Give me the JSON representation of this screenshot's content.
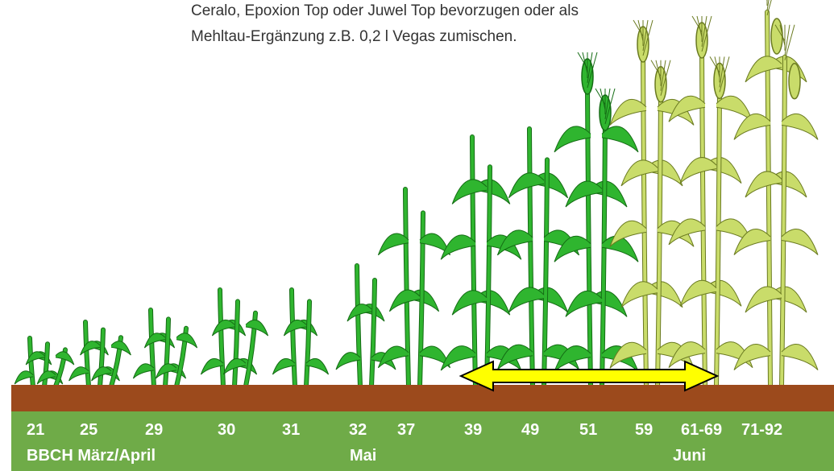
{
  "header": {
    "lines": [
      "Ceralo, Epoxion Top oder Juwel Top bevorzugen oder als",
      "Mehltau-Ergänzung z.B. 0,2 l Vegas zumischen."
    ]
  },
  "stages": [
    "21",
    "25",
    "29",
    "30",
    "31",
    "32",
    "37",
    "39",
    "49",
    "51",
    "59",
    "61-69",
    "71-92"
  ],
  "periods": [
    "BBCH März/April",
    "Mai",
    "Juni"
  ]
}
